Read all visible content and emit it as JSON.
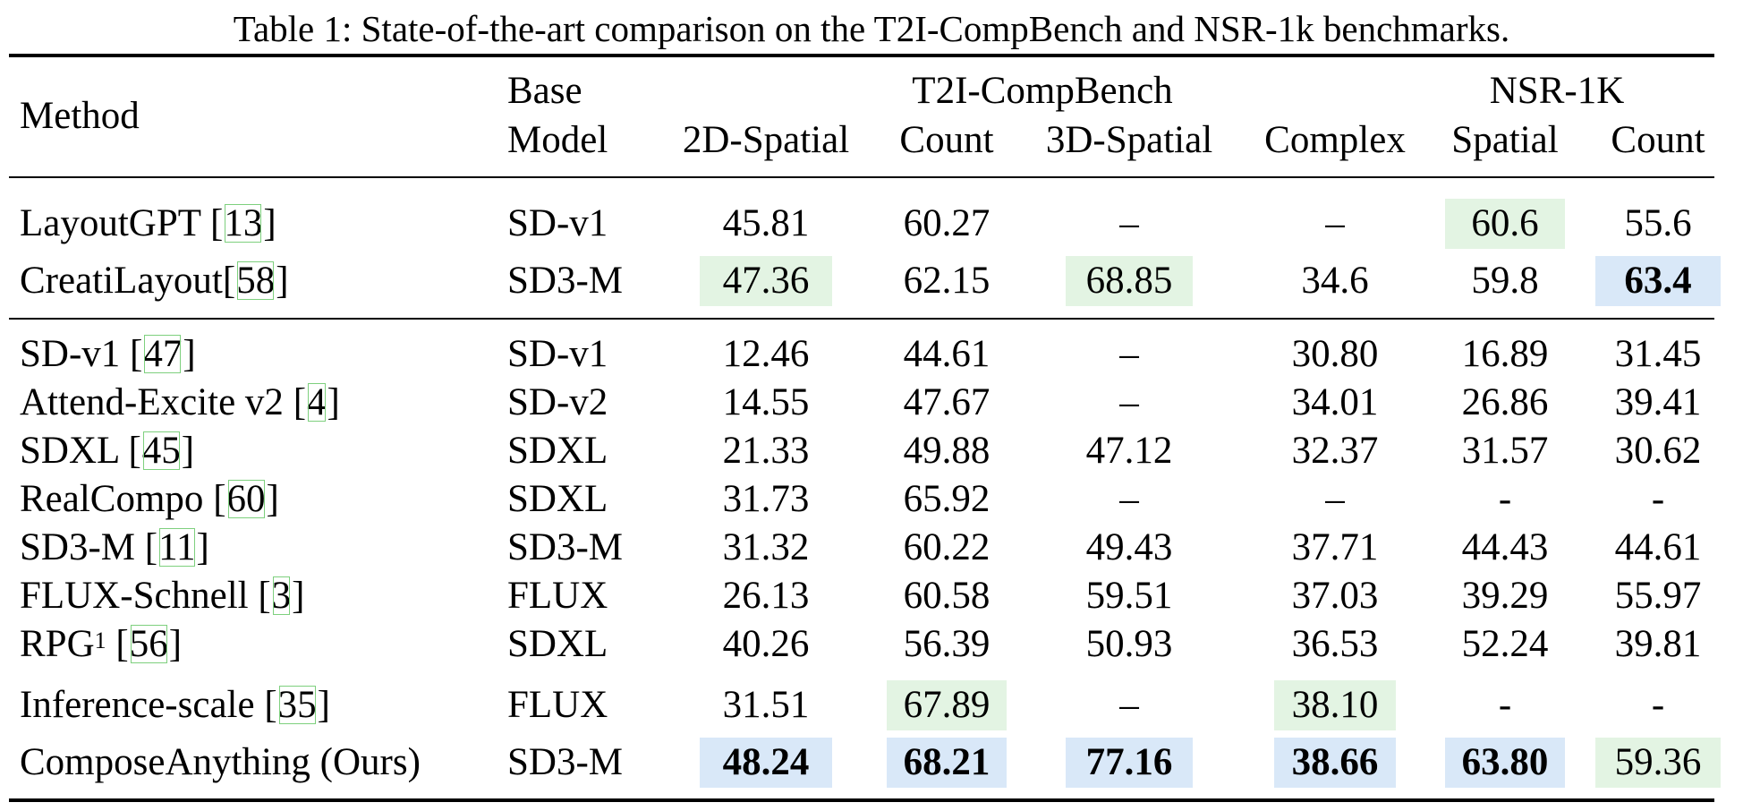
{
  "caption": "Table 1: State-of-the-art comparison on the T2I-CompBench and NSR-1k benchmarks.",
  "header": {
    "method": "Method",
    "base_model_line1": "Base",
    "base_model_line2": "Model",
    "group_t2i": "T2I-CompBench",
    "group_nsr": "NSR-1K",
    "columns": [
      "2D-Spatial",
      "Count",
      "3D-Spatial",
      "Complex",
      "Spatial",
      "Count"
    ]
  },
  "group1": [
    {
      "name": "LayoutGPT ",
      "cite": "13",
      "base": "SD-v1",
      "values": [
        "45.81",
        "60.27",
        "–",
        "–",
        "60.6",
        "55.6"
      ],
      "highlights": [
        "",
        "",
        "",
        "",
        "green",
        ""
      ],
      "bold": [
        false,
        false,
        false,
        false,
        false,
        false
      ]
    },
    {
      "name": "CreatiLayout",
      "cite": "58",
      "base": "SD3-M",
      "values": [
        "47.36",
        "62.15",
        "68.85",
        "34.6",
        "59.8",
        "63.4"
      ],
      "highlights": [
        "green",
        "",
        "green",
        "",
        "",
        "blue"
      ],
      "bold": [
        false,
        false,
        false,
        false,
        false,
        true
      ]
    }
  ],
  "group2": [
    {
      "name": "SD-v1 ",
      "cite": "47",
      "base": "SD-v1",
      "values": [
        "12.46",
        "44.61",
        "–",
        "30.80",
        "16.89",
        "31.45"
      ],
      "highlights": [
        "",
        "",
        "",
        "",
        "",
        ""
      ],
      "bold": [
        false,
        false,
        false,
        false,
        false,
        false
      ]
    },
    {
      "name": "Attend-Excite v2 ",
      "cite": "4",
      "base": "SD-v2",
      "values": [
        "14.55",
        "47.67",
        "–",
        "34.01",
        "26.86",
        "39.41"
      ],
      "highlights": [
        "",
        "",
        "",
        "",
        "",
        ""
      ],
      "bold": [
        false,
        false,
        false,
        false,
        false,
        false
      ]
    },
    {
      "name": "SDXL ",
      "cite": "45",
      "base": "SDXL",
      "values": [
        "21.33",
        "49.88",
        "47.12",
        "32.37",
        "31.57",
        "30.62"
      ],
      "highlights": [
        "",
        "",
        "",
        "",
        "",
        ""
      ],
      "bold": [
        false,
        false,
        false,
        false,
        false,
        false
      ]
    },
    {
      "name": "RealCompo ",
      "cite": "60",
      "base": "SDXL",
      "values": [
        "31.73",
        "65.92",
        "–",
        "–",
        "-",
        "-"
      ],
      "highlights": [
        "",
        "",
        "",
        "",
        "",
        ""
      ],
      "bold": [
        false,
        false,
        false,
        false,
        false,
        false
      ]
    },
    {
      "name": "SD3-M ",
      "cite": "11",
      "base": "SD3-M",
      "values": [
        "31.32",
        "60.22",
        "49.43",
        "37.71",
        "44.43",
        "44.61"
      ],
      "highlights": [
        "",
        "",
        "",
        "",
        "",
        ""
      ],
      "bold": [
        false,
        false,
        false,
        false,
        false,
        false
      ]
    },
    {
      "name": "FLUX-Schnell ",
      "cite": "3",
      "base": "FLUX",
      "values": [
        "26.13",
        "60.58",
        "59.51",
        "37.03",
        "39.29",
        "55.97"
      ],
      "highlights": [
        "",
        "",
        "",
        "",
        "",
        ""
      ],
      "bold": [
        false,
        false,
        false,
        false,
        false,
        false
      ]
    },
    {
      "name": "RPG",
      "sup": "1",
      "cite": "56",
      "base": "SDXL",
      "values": [
        "40.26",
        "56.39",
        "50.93",
        "36.53",
        "52.24",
        "39.81"
      ],
      "highlights": [
        "",
        "",
        "",
        "",
        "",
        ""
      ],
      "bold": [
        false,
        false,
        false,
        false,
        false,
        false
      ]
    },
    {
      "name": "Inference-scale ",
      "cite": "35",
      "base": "FLUX",
      "values": [
        "31.51",
        "67.89",
        "–",
        "38.10",
        "-",
        "-"
      ],
      "highlights": [
        "",
        "green",
        "",
        "green",
        "",
        ""
      ],
      "bold": [
        false,
        false,
        false,
        false,
        false,
        false
      ]
    },
    {
      "name": "ComposeAnything (Ours)",
      "base": "SD3-M",
      "values": [
        "48.24",
        "68.21",
        "77.16",
        "38.66",
        "63.80",
        "59.36"
      ],
      "highlights": [
        "blue",
        "blue",
        "blue",
        "blue",
        "blue",
        "green"
      ],
      "bold": [
        true,
        true,
        true,
        true,
        true,
        false
      ]
    }
  ],
  "colors": {
    "best_highlight": "#d9e8f8",
    "second_highlight": "#e3f4e3",
    "citation_box": "#7ed07e"
  }
}
